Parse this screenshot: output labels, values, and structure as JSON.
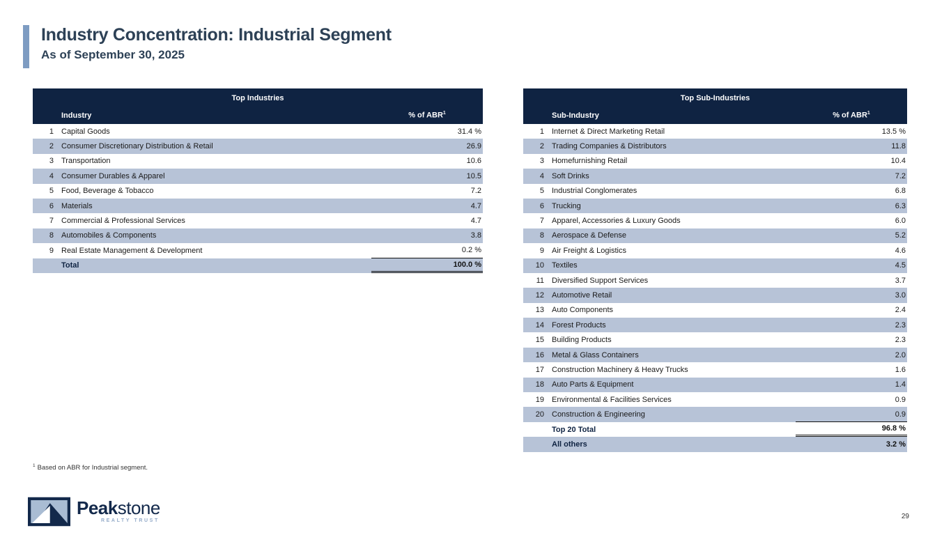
{
  "header": {
    "title": "Industry Concentration: Industrial Segment",
    "subtitle": "As of September 30, 2025"
  },
  "tables": [
    {
      "title": "Top Industries",
      "columns": {
        "label": "Industry",
        "value": "% of ABR",
        "value_sup": "1"
      },
      "rows": [
        {
          "n": "1",
          "label": "Capital Goods",
          "value": "31.4 %"
        },
        {
          "n": "2",
          "label": "Consumer Discretionary Distribution & Retail",
          "value": "26.9"
        },
        {
          "n": "3",
          "label": "Transportation",
          "value": "10.6"
        },
        {
          "n": "4",
          "label": "Consumer Durables & Apparel",
          "value": "10.5"
        },
        {
          "n": "5",
          "label": "Food, Beverage & Tobacco",
          "value": "7.2"
        },
        {
          "n": "6",
          "label": "Materials",
          "value": "4.7"
        },
        {
          "n": "7",
          "label": "Commercial & Professional Services",
          "value": "4.7"
        },
        {
          "n": "8",
          "label": "Automobiles & Components",
          "value": "3.8"
        },
        {
          "n": "9",
          "label": "Real Estate Management & Development",
          "value": "0.2 %",
          "rule": "single"
        },
        {
          "n": "",
          "label": "Total",
          "value": "100.0 %",
          "bold": true,
          "rule": "double"
        }
      ]
    },
    {
      "title": "Top Sub-Industries",
      "columns": {
        "label": "Sub-Industry",
        "value": "% of ABR",
        "value_sup": "1"
      },
      "rows": [
        {
          "n": "1",
          "label": "Internet & Direct Marketing Retail",
          "value": "13.5 %"
        },
        {
          "n": "2",
          "label": "Trading Companies & Distributors",
          "value": "11.8"
        },
        {
          "n": "3",
          "label": "Homefurnishing Retail",
          "value": "10.4"
        },
        {
          "n": "4",
          "label": "Soft Drinks",
          "value": "7.2"
        },
        {
          "n": "5",
          "label": "Industrial Conglomerates",
          "value": "6.8"
        },
        {
          "n": "6",
          "label": "Trucking",
          "value": "6.3"
        },
        {
          "n": "7",
          "label": "Apparel, Accessories & Luxury Goods",
          "value": "6.0"
        },
        {
          "n": "8",
          "label": "Aerospace & Defense",
          "value": "5.2"
        },
        {
          "n": "9",
          "label": "Air Freight & Logistics",
          "value": "4.6"
        },
        {
          "n": "10",
          "label": "Textiles",
          "value": "4.5"
        },
        {
          "n": "11",
          "label": "Diversified Support Services",
          "value": "3.7"
        },
        {
          "n": "12",
          "label": "Automotive Retail",
          "value": "3.0"
        },
        {
          "n": "13",
          "label": "Auto Components",
          "value": "2.4"
        },
        {
          "n": "14",
          "label": "Forest Products",
          "value": "2.3"
        },
        {
          "n": "15",
          "label": "Building Products",
          "value": "2.3"
        },
        {
          "n": "16",
          "label": "Metal & Glass Containers",
          "value": "2.0"
        },
        {
          "n": "17",
          "label": "Construction Machinery & Heavy Trucks",
          "value": "1.6"
        },
        {
          "n": "18",
          "label": "Auto Parts & Equipment",
          "value": "1.4"
        },
        {
          "n": "19",
          "label": "Environmental & Facilities Services",
          "value": "0.9"
        },
        {
          "n": "20",
          "label": "Construction & Engineering",
          "value": "0.9",
          "rule": "single"
        },
        {
          "n": "",
          "label": "Top 20 Total",
          "value": "96.8 %",
          "bold": true,
          "rule": "double"
        },
        {
          "n": "",
          "label": "All others",
          "value": "3.2 %",
          "bold": true
        }
      ]
    }
  ],
  "footnote": {
    "sup": "1",
    "text": "Based on ABR for Industrial segment."
  },
  "logo": {
    "name_bold": "Peak",
    "name_regular": "stone",
    "tagline": "REALTY TRUST"
  },
  "page_number": "29",
  "colors": {
    "navy": "#0f2342",
    "row_blue": "#b7c3d7",
    "accent_bar": "#7e9cc2",
    "title_text": "#2d4156",
    "logo_navy": "#13294b",
    "logo_inner": "#a9bcd3",
    "tagline": "#94abc9"
  }
}
